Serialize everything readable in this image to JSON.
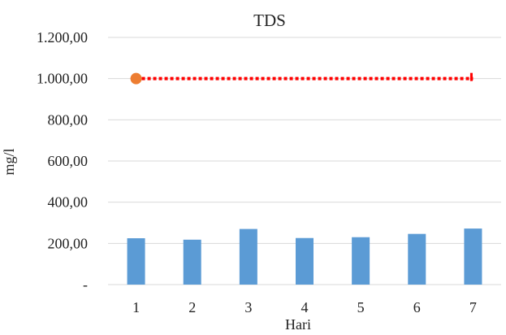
{
  "chart_data": {
    "type": "bar",
    "title": "TDS",
    "xlabel": "Hari",
    "ylabel": "mg/l",
    "categories": [
      "1",
      "2",
      "3",
      "4",
      "5",
      "6",
      "7"
    ],
    "ylim": [
      0,
      1200
    ],
    "yticks": [
      0,
      200,
      400,
      600,
      800,
      1000,
      1200
    ],
    "ytick_labels": [
      "-",
      "200,00",
      "400,00",
      "600,00",
      "800,00",
      "1.000,00",
      "1.200,00"
    ],
    "grid": true,
    "legend": "none",
    "series": [
      {
        "type": "bar",
        "color": "#5b9bd5",
        "values": [
          225,
          218,
          270,
          226,
          230,
          246,
          272
        ]
      },
      {
        "type": "line",
        "style": "dotted",
        "color": "#ff0000",
        "values": [
          1000,
          1000,
          1000,
          1000,
          1000,
          1000,
          1000
        ],
        "marker": {
          "shape": "circle",
          "color": "#ed7d31",
          "at_index": 0
        }
      }
    ]
  }
}
